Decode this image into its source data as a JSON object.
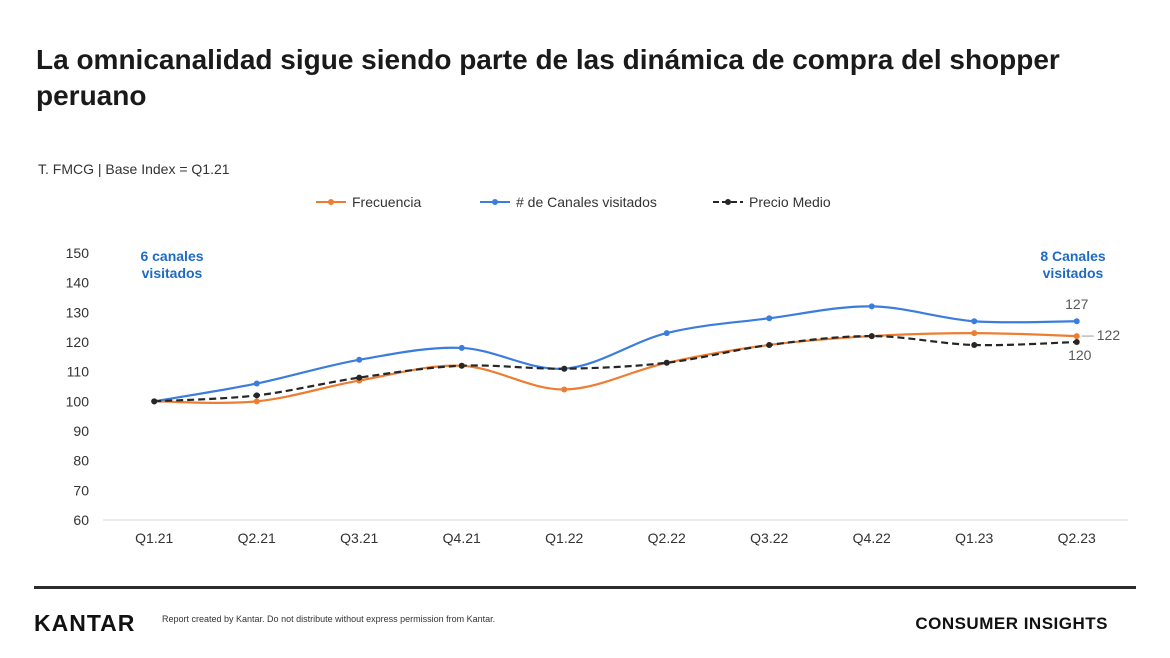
{
  "page": {
    "title": "La omnicanalidad sigue siendo parte de las dinámica de compra del shopper peruano",
    "subtitle": "T. FMCG | Base Index  = Q1.21"
  },
  "colors": {
    "frecuencia": "#ed7d31",
    "canales": "#3b7ddd",
    "precio": "#262626",
    "annotation": "#1f6bc4"
  },
  "annotations": {
    "left": "6 canales visitados",
    "right": "8 Canales visitados"
  },
  "footer": {
    "logo": "KANTAR",
    "disclaimer": "Report created by Kantar. Do not distribute without express permission from Kantar.",
    "brand_right": "CONSUMER INSIGHTS"
  },
  "chart_data": {
    "type": "line",
    "title": "",
    "categories": [
      "Q1.21",
      "Q2.21",
      "Q3.21",
      "Q4.21",
      "Q1.22",
      "Q2.22",
      "Q3.22",
      "Q4.22",
      "Q1.23",
      "Q2.23"
    ],
    "yticks": [
      60,
      70,
      80,
      90,
      100,
      110,
      120,
      130,
      140,
      150
    ],
    "ylim": [
      60,
      150
    ],
    "series": [
      {
        "key": "frecuencia",
        "name": "Frecuencia",
        "style": "solid",
        "values": [
          100,
          100,
          107,
          112,
          104,
          113,
          119,
          122,
          123,
          122
        ]
      },
      {
        "key": "canales",
        "name": "# de Canales visitados",
        "style": "solid",
        "values": [
          100,
          106,
          114,
          118,
          111,
          123,
          128,
          132,
          127,
          127
        ]
      },
      {
        "key": "precio",
        "name": "Precio Medio",
        "style": "dashed",
        "values": [
          100,
          102,
          108,
          112,
          111,
          113,
          119,
          122,
          119,
          120
        ]
      }
    ],
    "data_labels": [
      {
        "series": "canales",
        "index": 9,
        "text": "127"
      },
      {
        "series": "frecuencia",
        "index": 9,
        "text": "122"
      },
      {
        "series": "precio",
        "index": 9,
        "text": "120"
      }
    ]
  }
}
